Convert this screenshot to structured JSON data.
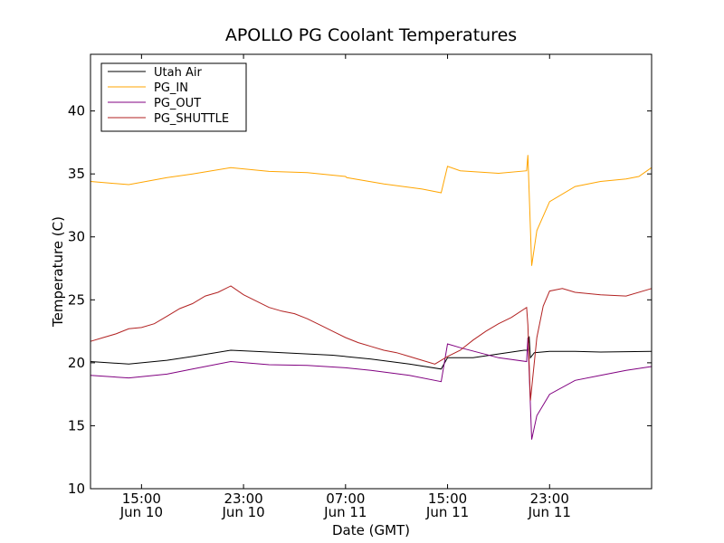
{
  "chart_data": {
    "type": "line",
    "title": "APOLLO PG Coolant Temperatures",
    "xlabel": "Date (GMT)",
    "ylabel": "Temperature (C)",
    "xlim": [
      0,
      44
    ],
    "ylim": [
      10,
      44.5
    ],
    "yticks": [
      10,
      15,
      20,
      25,
      30,
      35,
      40
    ],
    "xticks": [
      {
        "x": 4,
        "time": "15:00",
        "date": "Jun 10"
      },
      {
        "x": 12,
        "time": "23:00",
        "date": "Jun 10"
      },
      {
        "x": 20,
        "time": "07:00",
        "date": "Jun 11"
      },
      {
        "x": 28,
        "time": "15:00",
        "date": "Jun 11"
      },
      {
        "x": 36,
        "time": "23:00",
        "date": "Jun 11"
      }
    ],
    "legend_position": "upper-left",
    "series": [
      {
        "name": "Utah Air",
        "color": "#000000",
        "points": [
          [
            0,
            20.1
          ],
          [
            3,
            19.9
          ],
          [
            6,
            20.2
          ],
          [
            8,
            20.5
          ],
          [
            11,
            21.0
          ],
          [
            14,
            20.85
          ],
          [
            19,
            20.6
          ],
          [
            22,
            20.3
          ],
          [
            25,
            19.9
          ],
          [
            27.5,
            19.5
          ],
          [
            28,
            20.4
          ],
          [
            30,
            20.4
          ],
          [
            34,
            21.0
          ],
          [
            34.3,
            21.0
          ],
          [
            34.4,
            22.1
          ],
          [
            34.5,
            20.4
          ],
          [
            34.8,
            20.8
          ],
          [
            36,
            20.9
          ],
          [
            38,
            20.9
          ],
          [
            40,
            20.85
          ],
          [
            44,
            20.9
          ]
        ]
      },
      {
        "name": "PG_IN",
        "color": "#ffa500",
        "points": [
          [
            0,
            34.4
          ],
          [
            3,
            34.15
          ],
          [
            6,
            34.7
          ],
          [
            8,
            35.0
          ],
          [
            11,
            35.5
          ],
          [
            14,
            35.2
          ],
          [
            17,
            35.1
          ],
          [
            20,
            34.8
          ],
          [
            20.1,
            34.7
          ],
          [
            23,
            34.2
          ],
          [
            26,
            33.8
          ],
          [
            27.5,
            33.5
          ],
          [
            28,
            35.6
          ],
          [
            29,
            35.25
          ],
          [
            32,
            35.05
          ],
          [
            34.2,
            35.25
          ],
          [
            34.3,
            36.5
          ],
          [
            34.6,
            27.7
          ],
          [
            35,
            30.5
          ],
          [
            36,
            32.8
          ],
          [
            38,
            34.0
          ],
          [
            40,
            34.4
          ],
          [
            42,
            34.6
          ],
          [
            43,
            34.8
          ],
          [
            44,
            35.5
          ]
        ]
      },
      {
        "name": "PG_OUT",
        "color": "#800080",
        "points": [
          [
            0,
            19.0
          ],
          [
            3,
            18.8
          ],
          [
            6,
            19.1
          ],
          [
            8,
            19.5
          ],
          [
            11,
            20.1
          ],
          [
            14,
            19.85
          ],
          [
            17,
            19.8
          ],
          [
            20,
            19.6
          ],
          [
            22,
            19.4
          ],
          [
            25,
            19.0
          ],
          [
            27.5,
            18.5
          ],
          [
            28,
            21.5
          ],
          [
            29,
            21.2
          ],
          [
            32,
            20.4
          ],
          [
            34.2,
            20.1
          ],
          [
            34.3,
            22.0
          ],
          [
            34.6,
            13.9
          ],
          [
            35,
            15.8
          ],
          [
            36,
            17.5
          ],
          [
            38,
            18.6
          ],
          [
            40,
            19.0
          ],
          [
            42,
            19.4
          ],
          [
            44,
            19.7
          ]
        ]
      },
      {
        "name": "PG_SHUTTLE",
        "color": "#b22222",
        "points": [
          [
            0,
            21.7
          ],
          [
            1,
            22.0
          ],
          [
            2,
            22.3
          ],
          [
            3,
            22.7
          ],
          [
            4,
            22.8
          ],
          [
            5,
            23.1
          ],
          [
            6,
            23.7
          ],
          [
            7,
            24.3
          ],
          [
            8,
            24.7
          ],
          [
            9,
            25.3
          ],
          [
            10,
            25.6
          ],
          [
            11,
            26.1
          ],
          [
            12,
            25.4
          ],
          [
            13,
            24.9
          ],
          [
            14,
            24.4
          ],
          [
            15,
            24.1
          ],
          [
            16,
            23.9
          ],
          [
            17,
            23.5
          ],
          [
            18,
            23.0
          ],
          [
            19,
            22.5
          ],
          [
            20,
            22.0
          ],
          [
            21,
            21.6
          ],
          [
            22,
            21.3
          ],
          [
            23,
            21.0
          ],
          [
            24,
            20.8
          ],
          [
            25,
            20.5
          ],
          [
            26,
            20.2
          ],
          [
            27,
            19.9
          ],
          [
            28,
            20.5
          ],
          [
            29,
            21.0
          ],
          [
            30,
            21.8
          ],
          [
            31,
            22.5
          ],
          [
            32,
            23.1
          ],
          [
            33,
            23.6
          ],
          [
            34.2,
            24.4
          ],
          [
            34.3,
            23.0
          ],
          [
            34.5,
            17.0
          ],
          [
            35,
            22.0
          ],
          [
            35.5,
            24.5
          ],
          [
            36,
            25.7
          ],
          [
            37,
            25.9
          ],
          [
            38,
            25.6
          ],
          [
            40,
            25.4
          ],
          [
            42,
            25.3
          ],
          [
            44,
            25.9
          ]
        ]
      }
    ]
  }
}
